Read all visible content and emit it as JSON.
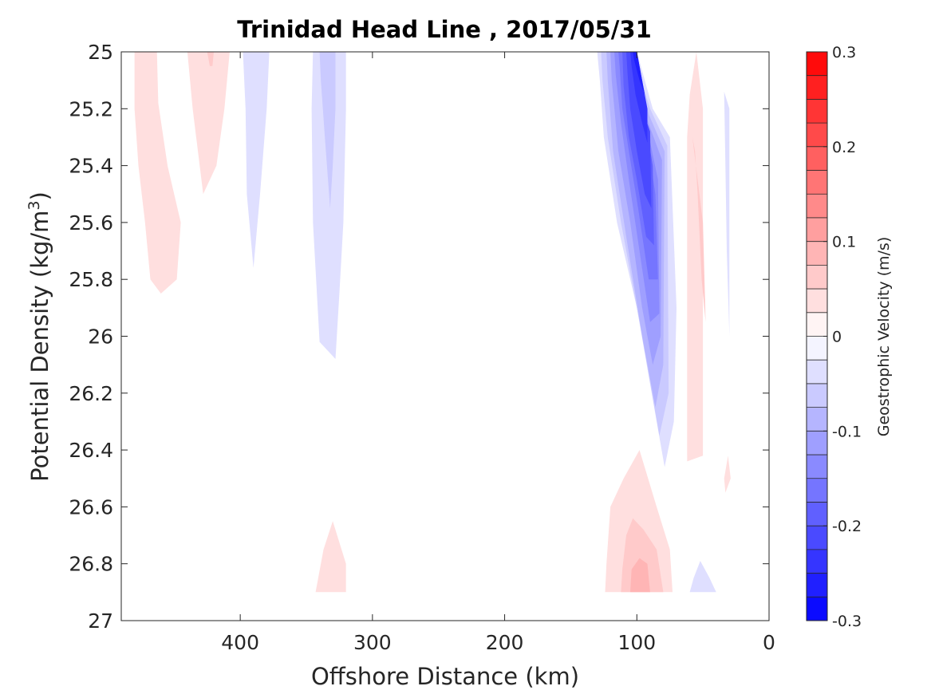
{
  "chart_data": {
    "type": "contour",
    "title": "Trinidad Head Line , 2017/05/31",
    "xlabel": "Offshore Distance (km)",
    "ylabel": "Potential Density (kg/m",
    "ylabel_sup": "3",
    "ylabel_close": ")",
    "x_axis": {
      "range": [
        490,
        0
      ],
      "reversed": true,
      "ticks": [
        400,
        300,
        200,
        100,
        0
      ],
      "tick_labels": [
        "400",
        "300",
        "200",
        "100",
        "0"
      ]
    },
    "y_axis": {
      "range": [
        25,
        27
      ],
      "reversed": true,
      "ticks": [
        25,
        25.2,
        25.4,
        25.6,
        25.8,
        26,
        26.2,
        26.4,
        26.6,
        26.8,
        27
      ],
      "tick_labels": [
        "25",
        "25.2",
        "25.4",
        "25.6",
        "25.8",
        "26",
        "26.2",
        "26.4",
        "26.6",
        "26.8",
        "27"
      ]
    },
    "colorbar": {
      "label": "Geostrophic Velocity (m/s)",
      "range": [
        -0.3,
        0.3
      ],
      "step": 0.025,
      "ticks": [
        0.3,
        0.2,
        0.1,
        0,
        -0.1,
        -0.2,
        -0.3
      ],
      "tick_labels": [
        "0.3",
        "0.2",
        "0.1",
        "0",
        "-0.1",
        "-0.2",
        "-0.3"
      ],
      "negative_color": "#0000ff",
      "positive_color": "#ff0000",
      "zero_color": "#ffffff"
    },
    "regions": [
      {
        "name": "pink-left-460",
        "value": 0.04,
        "points": [
          [
            480,
            25
          ],
          [
            463,
            25
          ],
          [
            462,
            25.18
          ],
          [
            455,
            25.4
          ],
          [
            445,
            25.6
          ],
          [
            448,
            25.8
          ],
          [
            460,
            25.85
          ],
          [
            468,
            25.8
          ],
          [
            472,
            25.6
          ],
          [
            477,
            25.4
          ],
          [
            480,
            25.2
          ]
        ]
      },
      {
        "name": "pink-420",
        "value": 0.04,
        "points": [
          [
            440,
            25
          ],
          [
            408,
            25
          ],
          [
            412,
            25.2
          ],
          [
            418,
            25.4
          ],
          [
            428,
            25.5
          ],
          [
            436,
            25.2
          ]
        ]
      },
      {
        "name": "pink-420-core",
        "value": 0.06,
        "points": [
          [
            425,
            25
          ],
          [
            420,
            25
          ],
          [
            421,
            25.05
          ],
          [
            423,
            25.05
          ]
        ]
      },
      {
        "name": "blue-390",
        "value": -0.03,
        "points": [
          [
            398,
            25
          ],
          [
            378,
            25
          ],
          [
            380,
            25.2
          ],
          [
            385,
            25.5
          ],
          [
            390,
            25.76
          ],
          [
            395,
            25.5
          ],
          [
            396,
            25.2
          ]
        ]
      },
      {
        "name": "blue-335",
        "value": -0.03,
        "points": [
          [
            345,
            25
          ],
          [
            320,
            25
          ],
          [
            320,
            25.2
          ],
          [
            322,
            25.6
          ],
          [
            325,
            25.85
          ],
          [
            328,
            26.08
          ],
          [
            340,
            26.02
          ],
          [
            345,
            25.6
          ],
          [
            346,
            25.2
          ]
        ]
      },
      {
        "name": "blue-335-core",
        "value": -0.06,
        "points": [
          [
            340,
            25
          ],
          [
            328,
            25
          ],
          [
            328,
            25.2
          ],
          [
            330,
            25.4
          ],
          [
            332,
            25.55
          ],
          [
            336,
            25.3
          ],
          [
            339,
            25.1
          ]
        ]
      },
      {
        "name": "blue-front",
        "value": -0.03,
        "points": [
          [
            130,
            25
          ],
          [
            105,
            25
          ],
          [
            100,
            25
          ],
          [
            88,
            25.2
          ],
          [
            75,
            25.3
          ],
          [
            70,
            25.9
          ],
          [
            72,
            26.3
          ],
          [
            79,
            26.46
          ],
          [
            85,
            26.3
          ],
          [
            100,
            25.9
          ],
          [
            115,
            25.6
          ],
          [
            125,
            25.3
          ],
          [
            128,
            25.1
          ]
        ]
      },
      {
        "name": "blue-front",
        "value": -0.06,
        "points": [
          [
            127,
            25
          ],
          [
            103,
            25
          ],
          [
            90,
            25.2
          ],
          [
            77,
            25.33
          ],
          [
            76,
            26.2
          ],
          [
            83,
            26.35
          ],
          [
            98,
            25.95
          ],
          [
            112,
            25.6
          ],
          [
            122,
            25.3
          ],
          [
            126,
            25.1
          ]
        ]
      },
      {
        "name": "blue-front",
        "value": -0.09,
        "points": [
          [
            123,
            25
          ],
          [
            102,
            25
          ],
          [
            91,
            25.22
          ],
          [
            79,
            25.35
          ],
          [
            80,
            26.1
          ],
          [
            86,
            26.25
          ],
          [
            96,
            26
          ],
          [
            108,
            25.65
          ],
          [
            118,
            25.35
          ],
          [
            122,
            25.1
          ]
        ]
      },
      {
        "name": "blue-front",
        "value": -0.11,
        "points": [
          [
            120,
            25
          ],
          [
            101,
            25
          ],
          [
            92,
            25.24
          ],
          [
            81,
            25.38
          ],
          [
            82,
            26
          ],
          [
            88,
            26.1
          ],
          [
            96,
            25.9
          ],
          [
            105,
            25.6
          ],
          [
            114,
            25.35
          ],
          [
            119,
            25.1
          ]
        ]
      },
      {
        "name": "blue-front",
        "value": -0.14,
        "points": [
          [
            117,
            25
          ],
          [
            100,
            25
          ],
          [
            93,
            25.25
          ],
          [
            84,
            25.45
          ],
          [
            83,
            25.92
          ],
          [
            90,
            25.95
          ],
          [
            98,
            25.7
          ],
          [
            106,
            25.45
          ],
          [
            112,
            25.25
          ],
          [
            116,
            25.08
          ]
        ]
      },
      {
        "name": "blue-front",
        "value": -0.16,
        "points": [
          [
            114,
            25
          ],
          [
            100,
            25
          ],
          [
            94,
            25.25
          ],
          [
            86,
            25.5
          ],
          [
            84,
            25.8
          ],
          [
            91,
            25.8
          ],
          [
            99,
            25.55
          ],
          [
            106,
            25.35
          ],
          [
            111,
            25.2
          ],
          [
            113,
            25.05
          ]
        ]
      },
      {
        "name": "blue-front",
        "value": -0.19,
        "points": [
          [
            111,
            25
          ],
          [
            100,
            25
          ],
          [
            95,
            25.2
          ],
          [
            88,
            25.4
          ],
          [
            87,
            25.68
          ],
          [
            93,
            25.65
          ],
          [
            100,
            25.45
          ],
          [
            106,
            25.3
          ],
          [
            110,
            25.12
          ]
        ]
      },
      {
        "name": "blue-front",
        "value": -0.21,
        "points": [
          [
            108,
            25
          ],
          [
            100,
            25
          ],
          [
            96,
            25.2
          ],
          [
            90,
            25.28
          ],
          [
            89,
            25.55
          ],
          [
            94,
            25.5
          ],
          [
            100,
            25.35
          ],
          [
            105,
            25.2
          ],
          [
            107,
            25.08
          ]
        ]
      },
      {
        "name": "blue-front",
        "value": -0.24,
        "points": [
          [
            105,
            25
          ],
          [
            100,
            25
          ],
          [
            92,
            25.2
          ],
          [
            92,
            25.32
          ],
          [
            96,
            25.25
          ],
          [
            101,
            25.15
          ],
          [
            104,
            25.05
          ]
        ]
      },
      {
        "name": "blue-front",
        "value": -0.26,
        "points": [
          [
            103,
            25
          ],
          [
            100,
            25
          ],
          [
            94,
            25.15
          ],
          [
            98,
            25.1
          ],
          [
            102,
            25.03
          ]
        ]
      },
      {
        "name": "pink-50",
        "value": 0.04,
        "points": [
          [
            62,
            25.3
          ],
          [
            62,
            26.44
          ],
          [
            50,
            26.42
          ],
          [
            50,
            25.2
          ],
          [
            55,
            25.0
          ],
          [
            60,
            25.15
          ]
        ]
      },
      {
        "name": "pink-50-core",
        "value": 0.06,
        "points": [
          [
            58,
            25.3
          ],
          [
            50,
            25.6
          ],
          [
            48,
            25.95
          ],
          [
            51,
            25.8
          ],
          [
            54,
            25.5
          ],
          [
            56,
            25.35
          ]
        ]
      },
      {
        "name": "blue-30",
        "value": -0.03,
        "points": [
          [
            34,
            25.14
          ],
          [
            30,
            25.2
          ],
          [
            30,
            26.0
          ],
          [
            32,
            25.7
          ],
          [
            33,
            25.4
          ]
        ]
      },
      {
        "name": "pink-30",
        "value": 0.04,
        "points": [
          [
            34,
            26.5
          ],
          [
            31,
            26.42
          ],
          [
            29,
            26.5
          ],
          [
            33,
            26.55
          ]
        ]
      },
      {
        "name": "pink-330-deep",
        "value": 0.04,
        "points": [
          [
            343,
            26.9
          ],
          [
            320,
            26.9
          ],
          [
            320,
            26.8
          ],
          [
            330,
            26.65
          ],
          [
            337,
            26.75
          ]
        ]
      },
      {
        "name": "pink-deep",
        "value": 0.04,
        "points": [
          [
            124,
            26.9
          ],
          [
            73,
            26.9
          ],
          [
            75,
            26.75
          ],
          [
            85,
            26.6
          ],
          [
            98,
            26.4
          ],
          [
            110,
            26.5
          ],
          [
            120,
            26.6
          ],
          [
            123,
            26.8
          ]
        ]
      },
      {
        "name": "pink-deep",
        "value": 0.06,
        "points": [
          [
            112,
            26.9
          ],
          [
            80,
            26.9
          ],
          [
            85,
            26.75
          ],
          [
            95,
            26.68
          ],
          [
            103,
            26.64
          ],
          [
            108,
            26.7
          ],
          [
            111,
            26.82
          ]
        ]
      },
      {
        "name": "pink-deep",
        "value": 0.09,
        "points": [
          [
            105,
            26.9
          ],
          [
            90,
            26.9
          ],
          [
            92,
            26.8
          ],
          [
            98,
            26.78
          ],
          [
            104,
            26.82
          ]
        ]
      },
      {
        "name": "blue-55-deep",
        "value": -0.03,
        "points": [
          [
            60,
            26.9
          ],
          [
            40,
            26.9
          ],
          [
            45,
            26.85
          ],
          [
            52,
            26.79
          ],
          [
            57,
            26.85
          ]
        ]
      }
    ]
  }
}
